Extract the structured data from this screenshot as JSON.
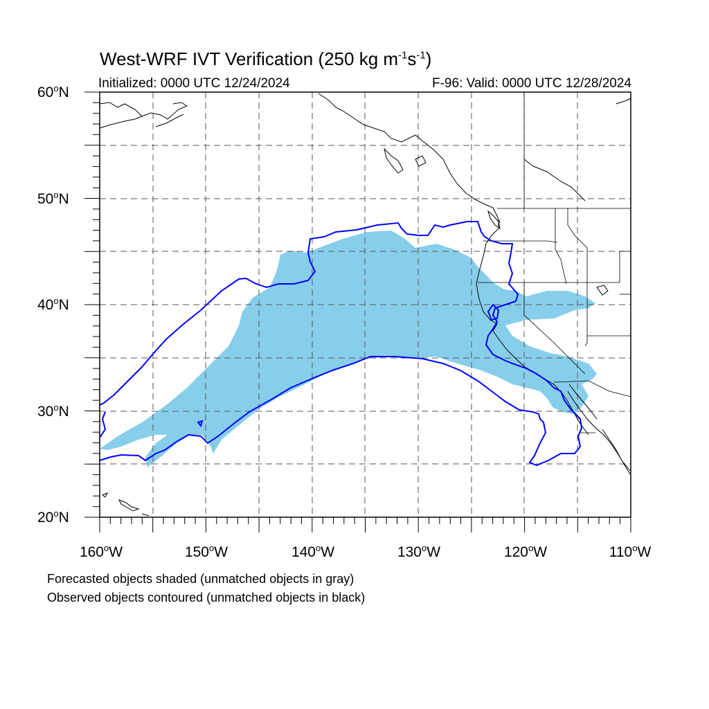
{
  "title": {
    "text_before": "West-WRF IVT Verification (250 kg m",
    "exp1": "-1",
    "mid": "s",
    "exp2": "-1",
    "text_after": ")"
  },
  "subtitle_left": "Initialized: 0000 UTC 12/24/2024",
  "subtitle_right": "F-96: Valid: 0000 UTC 12/28/2024",
  "lat_labels": [
    {
      "num": "60",
      "dir": "N"
    },
    {
      "num": "50",
      "dir": "N"
    },
    {
      "num": "40",
      "dir": "N"
    },
    {
      "num": "30",
      "dir": "N"
    },
    {
      "num": "20",
      "dir": "N"
    }
  ],
  "lon_labels": [
    {
      "num": "160",
      "dir": "W"
    },
    {
      "num": "150",
      "dir": "W"
    },
    {
      "num": "140",
      "dir": "W"
    },
    {
      "num": "130",
      "dir": "W"
    },
    {
      "num": "120",
      "dir": "W"
    },
    {
      "num": "110",
      "dir": "W"
    }
  ],
  "footer_line1": "Forecasted objects shaded (unmatched objects in gray)",
  "footer_line2": "Observed objects contoured (unmatched objects in black)",
  "map": {
    "lon_range": [
      -160,
      -110
    ],
    "lat_range": [
      20,
      60
    ],
    "grid_spacing_deg": 5,
    "grid_style": "dashed",
    "forecast_fill_color": "#87ceeb",
    "observed_contour_color": "#0000ff",
    "coastline_color": "#000000"
  }
}
